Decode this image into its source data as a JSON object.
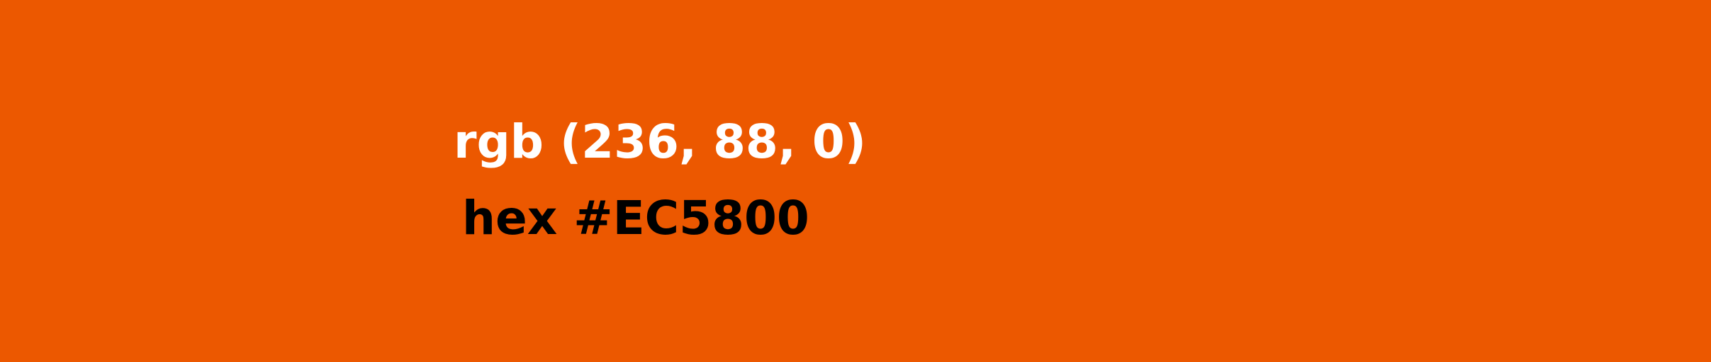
{
  "colors": {
    "background": "#EC5800",
    "rgb_text": "#FFFFFF",
    "hex_text": "#000000"
  },
  "swatch": {
    "rgb_label": "rgb (236, 88, 0)",
    "hex_label": "hex #EC5800"
  }
}
